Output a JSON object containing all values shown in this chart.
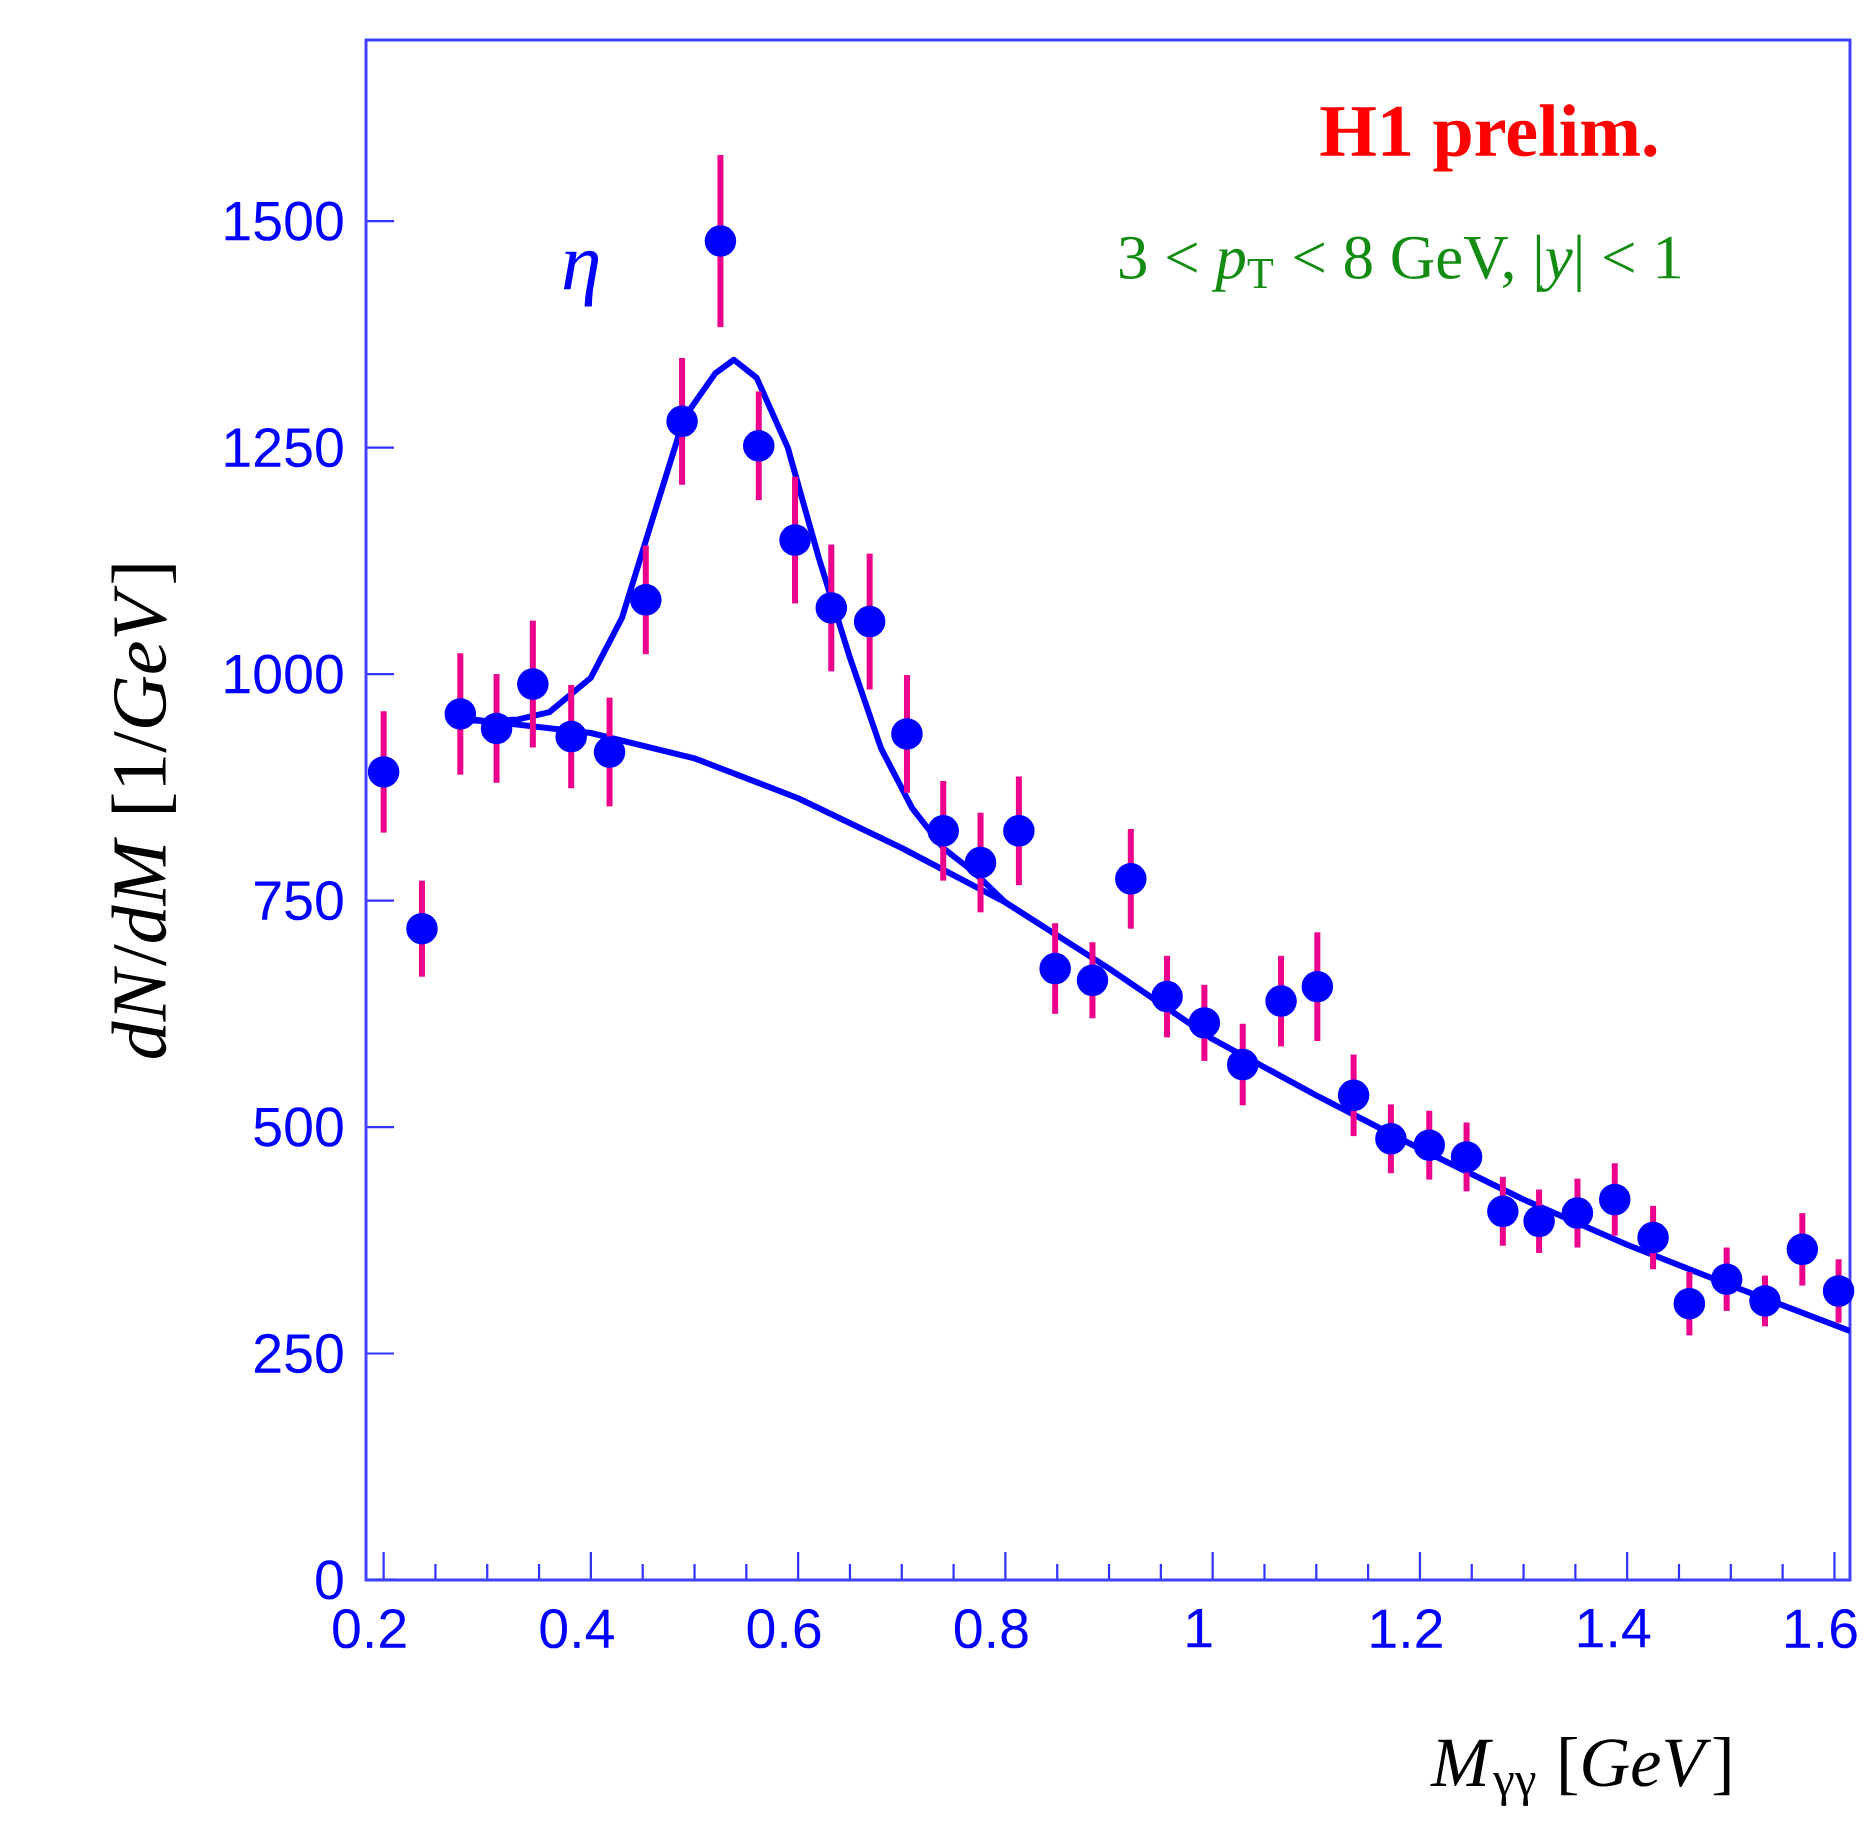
{
  "chart_data": {
    "type": "scatter",
    "title": "H1 prelim.",
    "xlabel": "*M*$_{γγ}$ [*GeV*]",
    "ylabel": "*dN*/*dM* [1/*GeV*]",
    "annotations": [
      "η",
      "3 < *p*$_{T}$ < 8 GeV, |*y*| < 1"
    ],
    "xlim": [
      0.183,
      1.615
    ],
    "ylim": [
      0,
      1700
    ],
    "xticks": [
      0.2,
      0.4,
      0.6,
      0.8,
      1,
      1.2,
      1.4,
      1.6
    ],
    "yticks": [
      0,
      250,
      500,
      750,
      1000,
      1250,
      1500
    ],
    "series": [
      {
        "color": "#0000ff",
        "marker": "circle",
        "x": [
          0.2,
          0.237,
          0.274,
          0.309,
          0.344,
          0.381,
          0.418,
          0.453,
          0.488,
          0.525,
          0.562,
          0.597,
          0.632,
          0.669,
          0.705,
          0.74,
          0.776,
          0.813,
          0.848,
          0.884,
          0.921,
          0.956,
          0.992,
          1.029,
          1.066,
          1.101,
          1.136,
          1.172,
          1.209,
          1.245,
          1.28,
          1.315,
          1.352,
          1.388,
          1.425,
          1.46,
          1.496,
          1.533,
          1.569,
          1.604
        ],
        "values": [
          892,
          719,
          956,
          940,
          989,
          931,
          914,
          1082,
          1279,
          1478,
          1252,
          1148,
          1073,
          1058,
          934,
          827,
          792,
          827,
          675,
          662,
          774,
          644,
          615,
          569,
          639,
          655,
          535,
          487,
          480,
          467,
          407,
          396,
          405,
          420,
          378,
          305,
          332,
          308,
          365,
          319
        ],
        "errors": [
          67,
          53,
          67,
          60,
          70,
          57,
          60,
          60,
          70,
          95,
          60,
          70,
          70,
          75,
          65,
          55,
          55,
          60,
          50,
          42,
          55,
          45,
          42,
          45,
          50,
          60,
          45,
          38,
          38,
          38,
          38,
          35,
          38,
          40,
          35,
          35,
          35,
          28,
          40,
          35
        ]
      },
      {
        "type": "line",
        "color": "#0000ff",
        "marker": "none",
        "x": [
          0.27,
          0.3,
          0.33,
          0.36,
          0.4,
          0.43,
          0.46,
          0.49,
          0.52,
          0.538,
          0.56,
          0.59,
          0.62,
          0.65,
          0.68,
          0.71,
          0.74,
          0.77,
          0.8
        ],
        "values": [
          952,
          948,
          950,
          958,
          996,
          1062,
          1173,
          1283,
          1332,
          1347,
          1327,
          1250,
          1128,
          1018,
          918,
          852,
          808,
          781,
          748
        ]
      },
      {
        "type": "line",
        "color": "#0000ff",
        "marker": "none",
        "x": [
          0.27,
          0.3,
          0.4,
          0.5,
          0.6,
          0.7,
          0.8,
          0.9,
          1.0,
          1.1,
          1.2,
          1.3,
          1.4,
          1.5,
          1.615
        ],
        "values": [
          950,
          948,
          935,
          907,
          863,
          808,
          748,
          675,
          597,
          535,
          476,
          420,
          370,
          325,
          275
        ]
      }
    ]
  }
}
